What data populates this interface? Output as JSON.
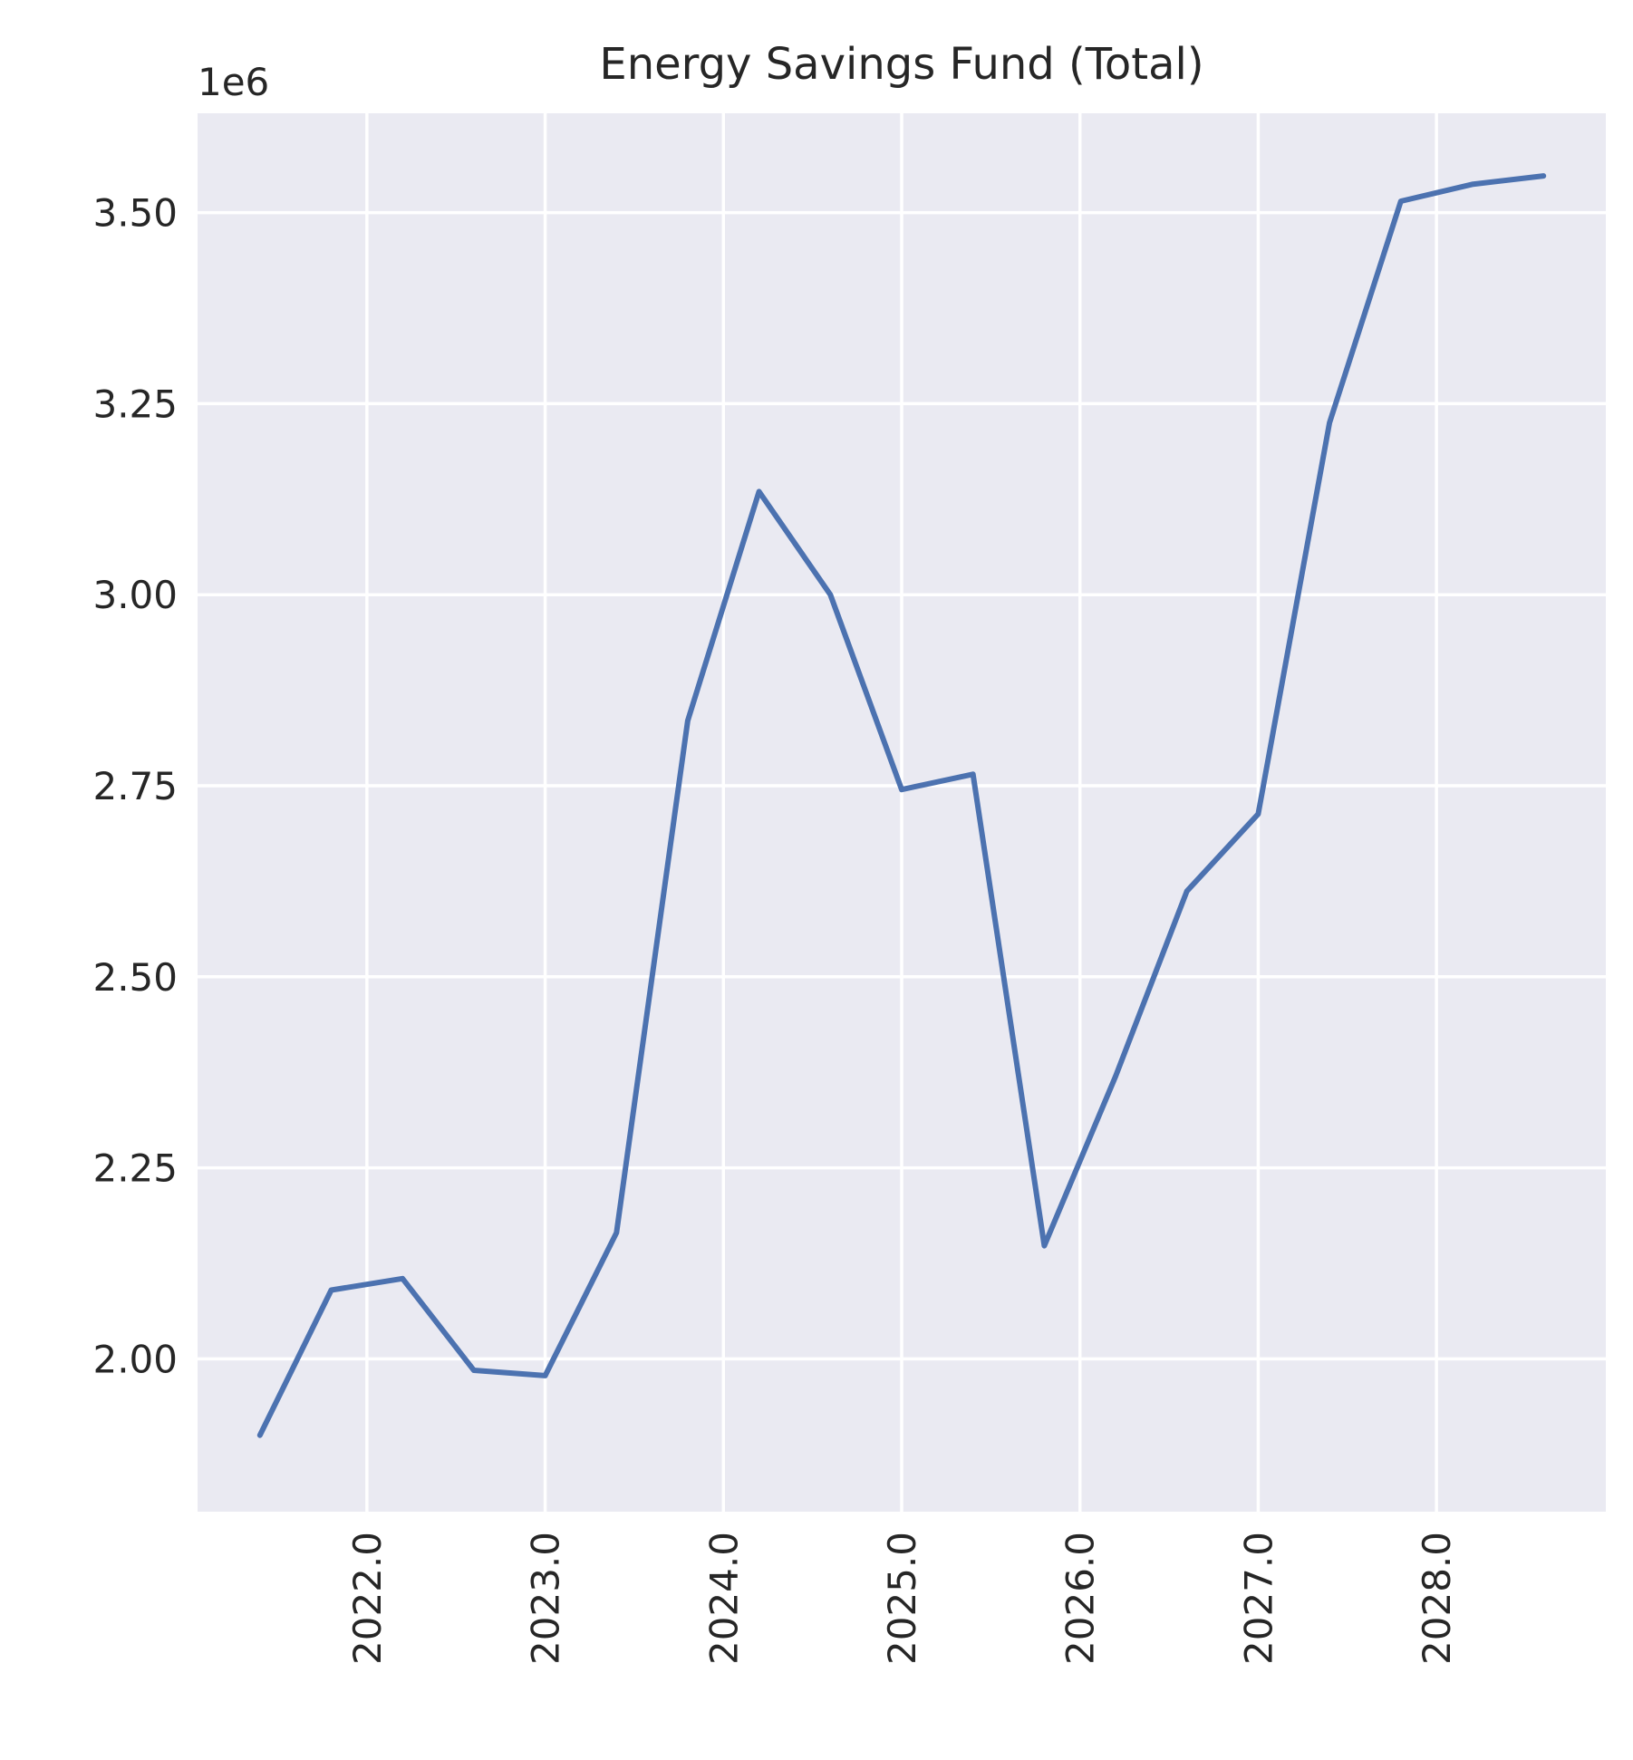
{
  "chart_data": {
    "type": "line",
    "title": "Energy Savings Fund (Total)",
    "xlabel": "",
    "ylabel": "",
    "y_offset_label": "1e6",
    "y_scale_factor": 1000000,
    "xlim": [
      2021.05,
      2028.95
    ],
    "ylim": [
      1.8,
      3.63
    ],
    "x_ticks": [
      2022.0,
      2023.0,
      2024.0,
      2025.0,
      2026.0,
      2027.0,
      2028.0
    ],
    "x_tick_labels": [
      "2022.0",
      "2023.0",
      "2024.0",
      "2025.0",
      "2026.0",
      "2027.0",
      "2028.0"
    ],
    "y_ticks": [
      2.0,
      2.25,
      2.5,
      2.75,
      3.0,
      3.25,
      3.5
    ],
    "y_tick_labels": [
      "2.00",
      "2.25",
      "2.50",
      "2.75",
      "3.00",
      "3.25",
      "3.50"
    ],
    "grid": true,
    "colors": {
      "background": "#eaeaf2",
      "grid": "#ffffff",
      "line": "#4c72b0",
      "text": "#262626"
    },
    "series": [
      {
        "x": [
          2021.4,
          2021.8,
          2022.2,
          2022.6,
          2023.0,
          2023.4,
          2023.8,
          2024.2,
          2024.6,
          2025.0,
          2025.4,
          2025.8,
          2026.2,
          2026.6,
          2027.0,
          2027.4,
          2027.8,
          2028.2,
          2028.6
        ],
        "y": [
          1.9,
          2.09,
          2.105,
          1.985,
          1.978,
          2.165,
          2.835,
          3.135,
          3.0,
          2.745,
          2.765,
          2.148,
          2.37,
          2.612,
          2.713,
          3.225,
          3.515,
          3.537,
          3.548
        ]
      }
    ]
  }
}
